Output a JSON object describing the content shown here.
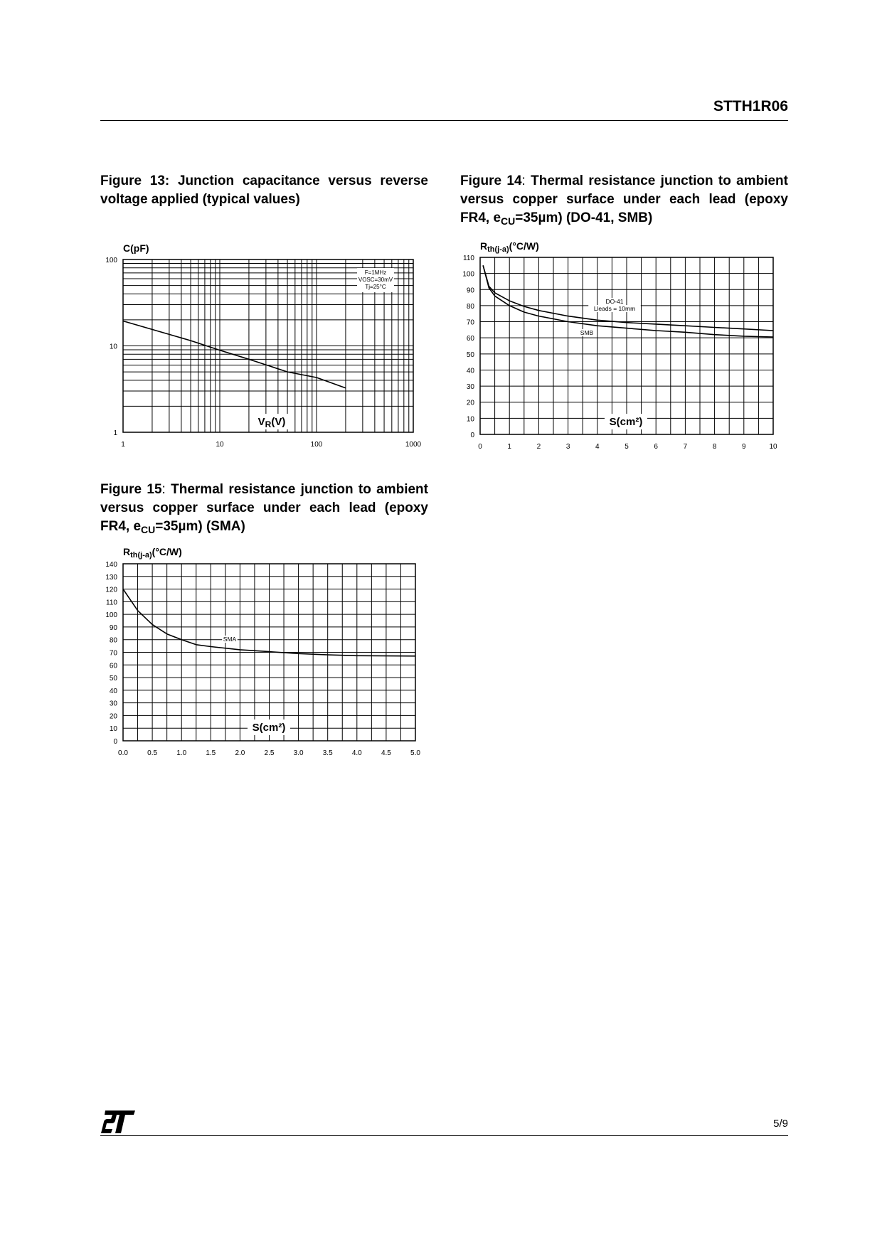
{
  "header": {
    "title": "STTH1R06"
  },
  "footer": {
    "page": "5/9",
    "logo_text": "ST"
  },
  "figures": [
    {
      "label": "Figure 13:",
      "text": "Junction capacitance versus reverse voltage applied (typical values)"
    },
    {
      "label": "Figure 14",
      "sep": ":",
      "text_a": "Thermal resistance junction to ambient versus copper surface under each lead (epoxy FR4, e",
      "sub": "CU",
      "text_b": "=35µm) (DO-41, SMB)"
    },
    {
      "label": "Figure 15",
      "sep": ":",
      "text_a": "Thermal resistance junction to ambient versus copper surface under each lead (epoxy FR4, e",
      "sub": "CU",
      "text_b": "=35µm) (SMA)"
    }
  ],
  "chart_data": [
    {
      "type": "line",
      "xscale": "log",
      "yscale": "log",
      "xlim": [
        1,
        1000
      ],
      "ylim": [
        1,
        100
      ],
      "xticks": [
        "1",
        "10",
        "100",
        "1000"
      ],
      "xtick_values": [
        1,
        10,
        100,
        1000
      ],
      "yticks": [
        "1",
        "10",
        "100"
      ],
      "ytick_values": [
        1,
        10,
        100
      ],
      "ylabel": {
        "main": "C(pF)",
        "sub": "",
        "unit": ""
      },
      "xlabel": {
        "main": "V",
        "sub": "R",
        "unit": "(V)"
      },
      "grid": true,
      "annotations": [
        "F=1MHz",
        "VOSC=30mV",
        "Tj=25°C"
      ],
      "series": [
        {
          "x": [
            1,
            2,
            5,
            10,
            20,
            50,
            100,
            200
          ],
          "y": [
            19.4,
            15.5,
            11.5,
            8.9,
            7.0,
            5.0,
            4.3,
            3.25
          ]
        }
      ]
    },
    {
      "type": "line",
      "xscale": "linear",
      "yscale": "linear",
      "xlim": [
        0,
        10
      ],
      "ylim": [
        0,
        110
      ],
      "xticks": [
        "0",
        "1",
        "2",
        "3",
        "4",
        "5",
        "6",
        "7",
        "8",
        "9",
        "10"
      ],
      "xtick_values": [
        0,
        1,
        2,
        3,
        4,
        5,
        6,
        7,
        8,
        9,
        10
      ],
      "yticks": [
        "0",
        "10",
        "20",
        "30",
        "40",
        "50",
        "60",
        "70",
        "80",
        "90",
        "100",
        "110"
      ],
      "ytick_values": [
        0,
        10,
        20,
        30,
        40,
        50,
        60,
        70,
        80,
        90,
        100,
        110
      ],
      "xgrid_step": 0.5,
      "ygrid_step": 10,
      "ylabel": {
        "main": "R",
        "sub": "th(j-a)",
        "unit": "(°C/W)"
      },
      "xlabel": {
        "main": "S(cm²)",
        "sub": "",
        "unit": ""
      },
      "grid": true,
      "series": [
        {
          "name": "DO-41",
          "name2": "Lleads = 10mm",
          "x": [
            0.1,
            0.3,
            0.5,
            1,
            1.5,
            2,
            3,
            4,
            5,
            6,
            7,
            8,
            9,
            10
          ],
          "y": [
            105,
            92,
            88,
            83,
            79.5,
            77,
            73.5,
            71,
            69.5,
            68.5,
            67.5,
            66.5,
            65.5,
            64.5
          ]
        },
        {
          "name": "SMB",
          "x": [
            0.1,
            0.3,
            0.5,
            1,
            1.5,
            2,
            3,
            4,
            5,
            6,
            7,
            8,
            9,
            10
          ],
          "y": [
            105,
            91,
            86,
            80,
            76,
            73.5,
            70,
            67.5,
            66,
            64.5,
            63.5,
            62,
            61,
            60.5
          ]
        }
      ]
    },
    {
      "type": "line",
      "xscale": "linear",
      "yscale": "linear",
      "xlim": [
        0,
        5
      ],
      "ylim": [
        0,
        140
      ],
      "xticks": [
        "0.0",
        "0.5",
        "1.0",
        "1.5",
        "2.0",
        "2.5",
        "3.0",
        "3.5",
        "4.0",
        "4.5",
        "5.0"
      ],
      "xtick_values": [
        0,
        0.5,
        1,
        1.5,
        2,
        2.5,
        3,
        3.5,
        4,
        4.5,
        5
      ],
      "yticks": [
        "0",
        "10",
        "20",
        "30",
        "40",
        "50",
        "60",
        "70",
        "80",
        "90",
        "100",
        "110",
        "120",
        "130",
        "140"
      ],
      "ytick_values": [
        0,
        10,
        20,
        30,
        40,
        50,
        60,
        70,
        80,
        90,
        100,
        110,
        120,
        130,
        140
      ],
      "xgrid_step": 0.25,
      "ygrid_step": 10,
      "ylabel": {
        "main": "R",
        "sub": "th(j-a)",
        "unit": "(°C/W)"
      },
      "xlabel": {
        "main": "S(cm²)",
        "sub": "",
        "unit": ""
      },
      "grid": true,
      "series": [
        {
          "name": "SMA",
          "x": [
            0,
            0.25,
            0.5,
            0.75,
            1,
            1.25,
            1.5,
            2,
            2.5,
            3,
            3.5,
            4,
            5
          ],
          "y": [
            120,
            103,
            92,
            84.5,
            80,
            76,
            74.5,
            72,
            70.5,
            69,
            68,
            67.3,
            67
          ]
        }
      ]
    }
  ]
}
